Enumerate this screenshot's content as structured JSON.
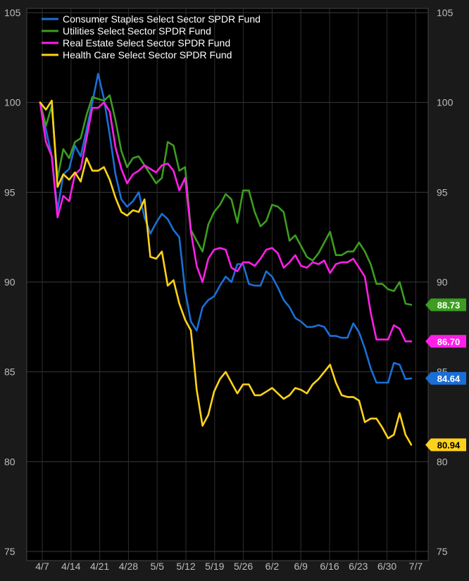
{
  "chart_data": {
    "type": "line",
    "title": "",
    "xlabel": "",
    "ylabel": "",
    "ylim": [
      75,
      105
    ],
    "yticks": [
      75,
      80,
      85,
      90,
      95,
      100,
      105
    ],
    "grid": true,
    "legend_position": "top-left",
    "x_tick_labels": [
      "4/7",
      "4/14",
      "4/21",
      "4/28",
      "5/5",
      "5/12",
      "5/19",
      "5/26",
      "6/2",
      "6/9",
      "6/16",
      "6/23",
      "6/30",
      "7/7"
    ],
    "series": [
      {
        "name": "Consumer Staples Select Sector SPDR Fund",
        "color": "#1a6fd6",
        "last_label": "84.64",
        "values": [
          100.0,
          98.5,
          97.0,
          94.0,
          96.0,
          96.3,
          97.6,
          97.0,
          98.5,
          100.0,
          101.6,
          100.2,
          98.2,
          96.0,
          94.6,
          94.2,
          94.5,
          95.0,
          93.6,
          92.7,
          93.3,
          93.8,
          93.5,
          92.9,
          92.5,
          89.5,
          87.8,
          87.3,
          88.6,
          89.0,
          89.2,
          89.8,
          90.3,
          90.0,
          91.0,
          91.0,
          89.9,
          89.8,
          89.8,
          90.6,
          90.3,
          89.7,
          89.0,
          88.6,
          88.0,
          87.8,
          87.5,
          87.5,
          87.6,
          87.5,
          87.0,
          87.0,
          86.9,
          86.9,
          87.7,
          87.2,
          86.3,
          85.2,
          84.4,
          84.4,
          84.4,
          85.5,
          85.4,
          84.6,
          84.64
        ]
      },
      {
        "name": "Utilities Select Sector SPDR Fund",
        "color": "#3c9d1f",
        "last_label": "88.73",
        "values": [
          100.0,
          98.7,
          99.8,
          95.8,
          97.4,
          96.9,
          97.8,
          98.0,
          99.3,
          100.3,
          100.2,
          100.1,
          100.4,
          99.0,
          97.3,
          96.4,
          96.9,
          97.0,
          96.5,
          96.0,
          95.5,
          95.8,
          97.8,
          97.6,
          96.2,
          96.4,
          92.9,
          92.3,
          91.7,
          93.2,
          93.9,
          94.3,
          94.9,
          94.6,
          93.3,
          95.1,
          95.1,
          93.9,
          93.1,
          93.4,
          94.3,
          94.2,
          93.9,
          92.3,
          92.6,
          92.0,
          91.4,
          91.2,
          91.6,
          92.2,
          92.8,
          91.5,
          91.5,
          91.7,
          91.7,
          92.2,
          91.7,
          91.0,
          89.9,
          89.9,
          89.6,
          89.5,
          90.0,
          88.8,
          88.73
        ]
      },
      {
        "name": "Real Estate Select Sector SPDR Fund",
        "color": "#ff1fe8",
        "last_label": "86.70",
        "values": [
          100.0,
          97.8,
          97.0,
          93.6,
          94.8,
          94.5,
          96.0,
          96.3,
          98.0,
          99.7,
          99.7,
          100.0,
          99.5,
          97.5,
          96.3,
          95.5,
          96.0,
          96.2,
          96.5,
          96.3,
          96.1,
          96.5,
          96.6,
          96.2,
          95.1,
          95.8,
          92.8,
          90.9,
          90.0,
          91.3,
          91.8,
          91.9,
          91.8,
          90.8,
          90.6,
          91.1,
          91.1,
          90.9,
          91.3,
          91.8,
          91.9,
          91.6,
          90.8,
          91.1,
          91.5,
          90.9,
          90.8,
          91.1,
          91.0,
          91.2,
          90.5,
          91.0,
          91.1,
          91.1,
          91.3,
          90.8,
          90.3,
          88.3,
          86.8,
          86.8,
          86.8,
          87.6,
          87.4,
          86.7,
          86.7
        ]
      },
      {
        "name": "Health Care Select Sector SPDR Fund",
        "color": "#ffd21a",
        "last_label": "80.94",
        "values": [
          100.0,
          99.6,
          100.1,
          95.3,
          96.0,
          95.7,
          96.1,
          95.6,
          96.9,
          96.2,
          96.2,
          96.4,
          95.7,
          94.7,
          93.9,
          93.7,
          94.0,
          93.9,
          94.6,
          91.4,
          91.3,
          91.7,
          89.8,
          90.1,
          88.8,
          87.9,
          87.3,
          84.0,
          82.0,
          82.6,
          83.9,
          84.6,
          85.0,
          84.4,
          83.8,
          84.3,
          84.3,
          83.7,
          83.7,
          83.9,
          84.1,
          83.8,
          83.5,
          83.7,
          84.1,
          84.0,
          83.8,
          84.3,
          84.6,
          85.0,
          85.4,
          84.4,
          83.7,
          83.6,
          83.6,
          83.4,
          82.2,
          82.4,
          82.4,
          81.9,
          81.3,
          81.5,
          82.7,
          81.5,
          80.94
        ]
      }
    ]
  }
}
